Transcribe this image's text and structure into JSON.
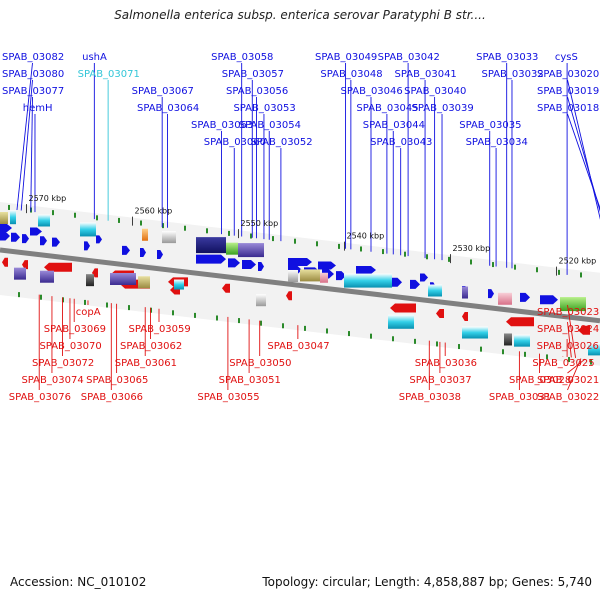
{
  "title": "Salmonella enterica subsp. enterica serovar Paratyphi B str....",
  "accession": "Accession: NC_010102",
  "summary": "Topology: circular; Length: 4,858,887 bp; Genes: 5,740",
  "colors": {
    "forward": "#1010e0",
    "reverse": "#e01010",
    "highlight": "#33c6d8",
    "backbone": "#808080",
    "tick": "#2a8a2a"
  },
  "ticks": [
    {
      "label": "2570 kbp",
      "pos": 2570
    },
    {
      "label": "2560 kbp",
      "pos": 2560
    },
    {
      "label": "2550 kbp",
      "pos": 2550
    },
    {
      "label": "2540 kbp",
      "pos": 2540
    },
    {
      "label": "2530 kbp",
      "pos": 2530
    },
    {
      "label": "2520 kbp",
      "pos": 2520
    }
  ],
  "forward_labels": [
    {
      "text": "SPAB_03082",
      "anchor": 2570.9
    },
    {
      "text": "SPAB_03080",
      "anchor": 2570.5
    },
    {
      "text": "SPAB_03077",
      "anchor": 2569.6
    },
    {
      "text": "hemH",
      "anchor": 2569.2
    },
    {
      "text": "SPAB_03071",
      "anchor": 2562.3,
      "highlight": true
    },
    {
      "text": "ushA",
      "anchor": 2563.6
    },
    {
      "text": "SPAB_03067",
      "anchor": 2557.2
    },
    {
      "text": "SPAB_03064",
      "anchor": 2556.7
    },
    {
      "text": "SPAB_03063",
      "anchor": 2551.6
    },
    {
      "text": "SPAB_03060",
      "anchor": 2550.4
    },
    {
      "text": "SPAB_03058",
      "anchor": 2549.7
    },
    {
      "text": "SPAB_03056",
      "anchor": 2548.3
    },
    {
      "text": "SPAB_03057",
      "anchor": 2548.7
    },
    {
      "text": "SPAB_03053",
      "anchor": 2547.6
    },
    {
      "text": "SPAB_03054",
      "anchor": 2547.1
    },
    {
      "text": "SPAB_03052",
      "anchor": 2546.0
    },
    {
      "text": "SPAB_03049",
      "anchor": 2539.9
    },
    {
      "text": "SPAB_03048",
      "anchor": 2539.4
    },
    {
      "text": "SPAB_03046",
      "anchor": 2537.5
    },
    {
      "text": "SPAB_03045",
      "anchor": 2536.0
    },
    {
      "text": "SPAB_03044",
      "anchor": 2535.4
    },
    {
      "text": "SPAB_03043",
      "anchor": 2534.7
    },
    {
      "text": "SPAB_03042",
      "anchor": 2534.0
    },
    {
      "text": "SPAB_03041",
      "anchor": 2532.4
    },
    {
      "text": "SPAB_03040",
      "anchor": 2531.5
    },
    {
      "text": "SPAB_03039",
      "anchor": 2530.8
    },
    {
      "text": "SPAB_03035",
      "anchor": 2526.3
    },
    {
      "text": "SPAB_03034",
      "anchor": 2525.7
    },
    {
      "text": "SPAB_03033",
      "anchor": 2524.7
    },
    {
      "text": "SPAB_03032",
      "anchor": 2524.2
    },
    {
      "text": "cysS",
      "anchor": 2519.0
    },
    {
      "text": "SPAB_03020",
      "anchor": 2514.5
    },
    {
      "text": "SPAB_03019",
      "anchor": 2514.0
    },
    {
      "text": "SPAB_03018",
      "anchor": 2513.5
    }
  ],
  "reverse_labels": [
    {
      "text": "SPAB_03076",
      "anchor": 2568.8
    },
    {
      "text": "SPAB_03074",
      "anchor": 2567.6
    },
    {
      "text": "copA",
      "anchor": 2564.2
    },
    {
      "text": "SPAB_03069",
      "anchor": 2565.5
    },
    {
      "text": "SPAB_03070",
      "anchor": 2565.9
    },
    {
      "text": "SPAB_03072",
      "anchor": 2566.6
    },
    {
      "text": "SPAB_03062",
      "anchor": 2558.3
    },
    {
      "text": "SPAB_03059",
      "anchor": 2557.5
    },
    {
      "text": "SPAB_03061",
      "anchor": 2558.8
    },
    {
      "text": "SPAB_03065",
      "anchor": 2561.5
    },
    {
      "text": "SPAB_03066",
      "anchor": 2562.0
    },
    {
      "text": "SPAB_03055",
      "anchor": 2551.0
    },
    {
      "text": "SPAB_03050",
      "anchor": 2548.0
    },
    {
      "text": "SPAB_03051",
      "anchor": 2549.0
    },
    {
      "text": "SPAB_03047",
      "anchor": 2544.4
    },
    {
      "text": "SPAB_03038",
      "anchor": 2532.0
    },
    {
      "text": "SPAB_03036",
      "anchor": 2530.5
    },
    {
      "text": "SPAB_03037",
      "anchor": 2531.0
    },
    {
      "text": "SPAB_03031",
      "anchor": 2523.5
    },
    {
      "text": "SPAB_03026",
      "anchor": 2519.0
    },
    {
      "text": "SPAB_03021",
      "anchor": 2517.3
    },
    {
      "text": "SPAB_03022",
      "anchor": 2517.7
    },
    {
      "text": "SPAB_03023",
      "anchor": 2518.2
    },
    {
      "text": "SPAB_03024",
      "anchor": 2518.6
    },
    {
      "text": "SPAB_03025",
      "anchor": 2519.4
    },
    {
      "text": "SPAB_03028",
      "anchor": 2521.6
    }
  ]
}
